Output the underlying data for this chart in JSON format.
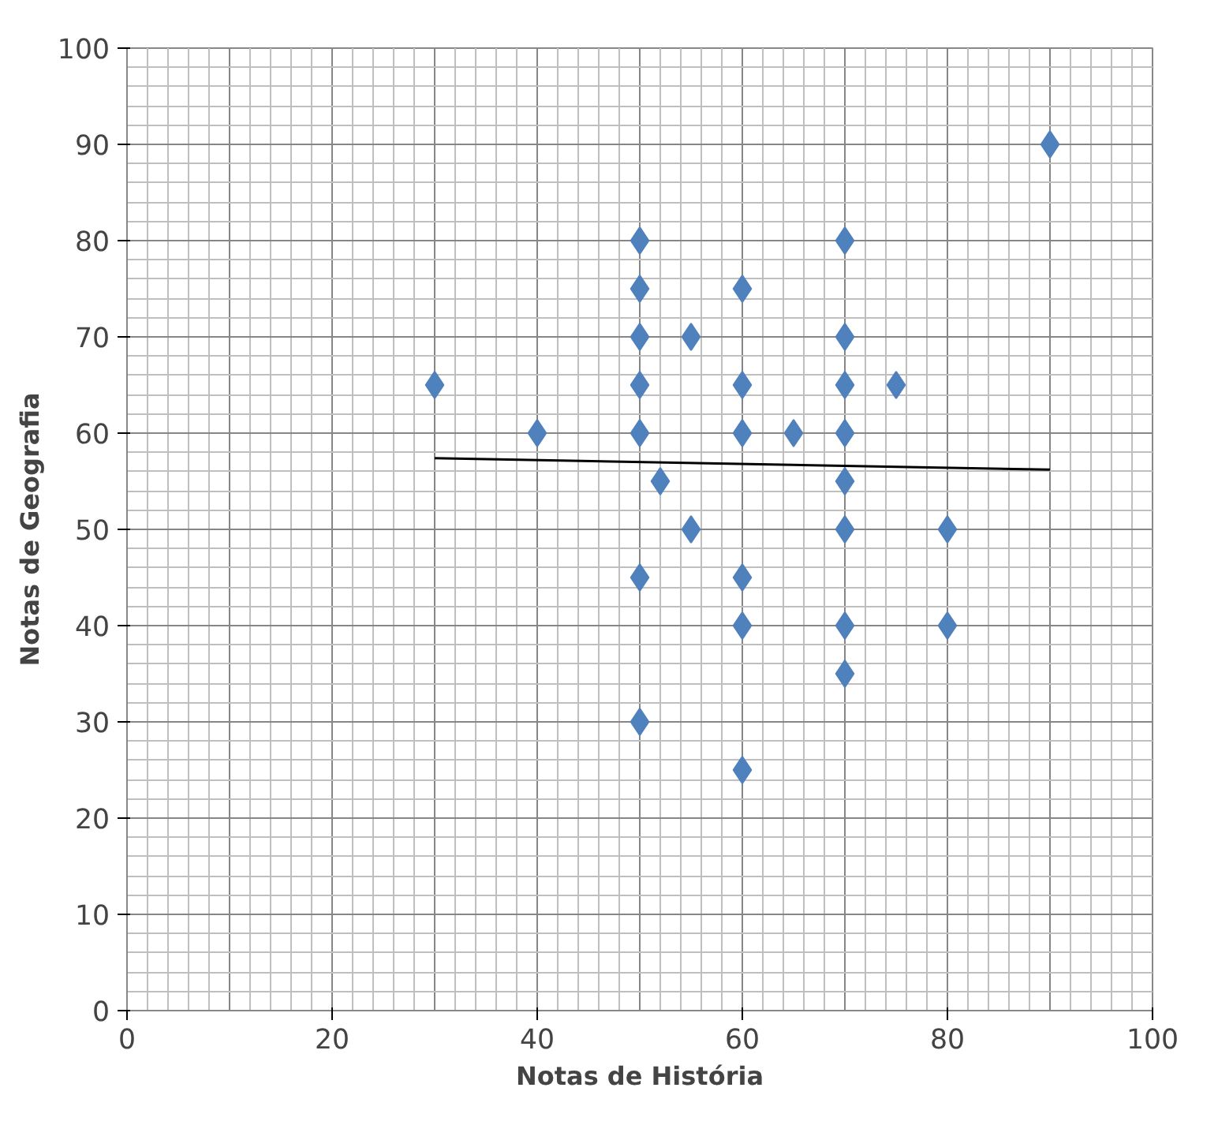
{
  "chart_data": {
    "type": "scatter",
    "xlabel": "Notas de História",
    "ylabel": "Notas de Geografia",
    "xlim": [
      0,
      100
    ],
    "ylim": [
      0,
      100
    ],
    "xticks": [
      0,
      20,
      40,
      60,
      80,
      100
    ],
    "yticks": [
      0,
      10,
      20,
      30,
      40,
      50,
      60,
      70,
      80,
      90,
      100
    ],
    "grid": true,
    "marker": "diamond",
    "series": [
      {
        "color": "#4f81bd",
        "x": [
          30,
          40,
          50,
          50,
          50,
          50,
          50,
          50,
          50,
          52,
          55,
          55,
          60,
          60,
          60,
          60,
          60,
          60,
          65,
          70,
          70,
          70,
          70,
          70,
          70,
          70,
          70,
          75,
          80,
          80,
          90
        ],
        "values": [
          65,
          60,
          80,
          75,
          70,
          65,
          60,
          45,
          30,
          55,
          70,
          50,
          75,
          65,
          60,
          45,
          40,
          25,
          60,
          80,
          70,
          65,
          60,
          55,
          50,
          40,
          35,
          65,
          50,
          40,
          90
        ]
      },
      {
        "type": "line",
        "color": "#000000",
        "x": [
          30,
          90
        ],
        "values": [
          57.4,
          56.2
        ],
        "marker": "none"
      }
    ]
  }
}
